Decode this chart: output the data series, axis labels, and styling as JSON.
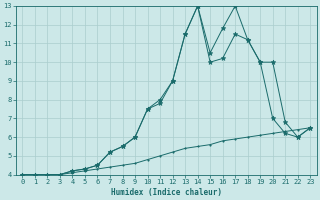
{
  "xlabel": "Humidex (Indice chaleur)",
  "bg_color": "#cce8e8",
  "grid_color": "#aacece",
  "line_color": "#1a6b6b",
  "xlim": [
    -0.5,
    23.5
  ],
  "ylim": [
    4,
    13
  ],
  "xticks": [
    0,
    1,
    2,
    3,
    4,
    5,
    6,
    7,
    8,
    9,
    10,
    11,
    12,
    13,
    14,
    15,
    16,
    17,
    18,
    19,
    20,
    21,
    22,
    23
  ],
  "yticks": [
    4,
    5,
    6,
    7,
    8,
    9,
    10,
    11,
    12,
    13
  ],
  "series": [
    {
      "x": [
        0,
        1,
        2,
        3,
        4,
        5,
        6,
        7,
        8,
        9,
        10,
        11,
        12,
        13,
        14,
        15,
        16,
        17,
        18,
        19,
        20,
        21,
        22,
        23
      ],
      "y": [
        4,
        4,
        4,
        4,
        4.2,
        4.3,
        4.5,
        5.2,
        5.5,
        6.0,
        7.5,
        8.0,
        9.0,
        11.5,
        13.0,
        10.5,
        11.8,
        13.0,
        11.2,
        10.0,
        7.0,
        6.2,
        6.0,
        6.5
      ],
      "marker": "*",
      "ms": 3.5
    },
    {
      "x": [
        0,
        1,
        2,
        3,
        4,
        5,
        6,
        7,
        8,
        9,
        10,
        11,
        12,
        13,
        14,
        15,
        16,
        17,
        18,
        19,
        20,
        21,
        22,
        23
      ],
      "y": [
        4,
        4,
        4,
        4,
        4.2,
        4.3,
        4.5,
        5.2,
        5.5,
        6.0,
        7.5,
        7.8,
        9.0,
        11.5,
        13.0,
        10.0,
        10.2,
        11.5,
        11.2,
        10.0,
        10.0,
        6.8,
        6.0,
        6.5
      ],
      "marker": "*",
      "ms": 3.5
    },
    {
      "x": [
        0,
        1,
        2,
        3,
        4,
        5,
        6,
        7,
        8,
        9,
        10,
        11,
        12,
        13,
        14,
        15,
        16,
        17,
        18,
        19,
        20,
        21,
        22,
        23
      ],
      "y": [
        4,
        4,
        4,
        4,
        4.1,
        4.2,
        4.3,
        4.4,
        4.5,
        4.6,
        4.8,
        5.0,
        5.2,
        5.4,
        5.5,
        5.6,
        5.8,
        5.9,
        6.0,
        6.1,
        6.2,
        6.3,
        6.4,
        6.5
      ],
      "marker": ".",
      "ms": 2.0
    }
  ]
}
